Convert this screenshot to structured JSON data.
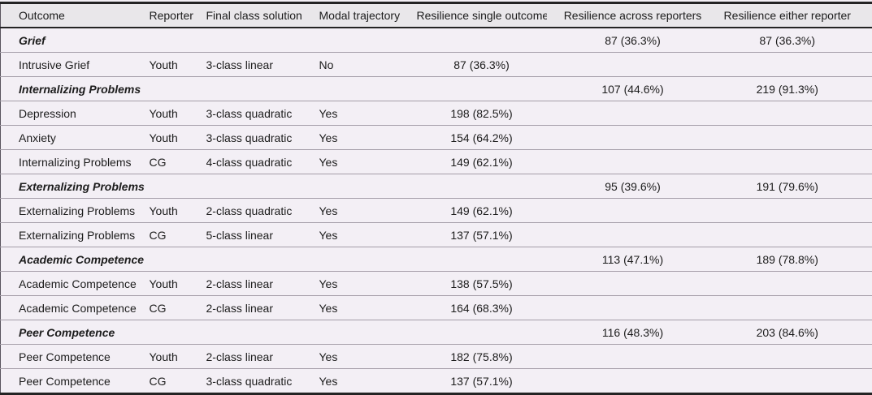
{
  "colors": {
    "page_bg": "#f3eff5",
    "header_bg": "#e9e7ea",
    "rule_dark": "#232323",
    "rule_light": "#a49da8",
    "text": "#1c1c1c"
  },
  "table": {
    "columns": [
      "Outcome",
      "Reporter",
      "Final class solution",
      "Modal trajectory",
      "Resilience single outcome",
      "Resilience across reporters",
      "Resilience either reporter"
    ],
    "rows": [
      {
        "section": true,
        "outcome": "Grief",
        "resilience_across_reporters": "87 (36.3%)",
        "resilience_either_reporter": "87 (36.3%)"
      },
      {
        "section": false,
        "outcome": "Intrusive Grief",
        "reporter": "Youth",
        "final_class_solution": "3-class linear",
        "modal_trajectory": "No",
        "resilience_single_outcome": "87 (36.3%)"
      },
      {
        "section": true,
        "outcome": "Internalizing Problems",
        "resilience_across_reporters": "107 (44.6%)",
        "resilience_either_reporter": "219 (91.3%)"
      },
      {
        "section": false,
        "outcome": "Depression",
        "reporter": "Youth",
        "final_class_solution": "3-class quadratic",
        "modal_trajectory": "Yes",
        "resilience_single_outcome": "198 (82.5%)"
      },
      {
        "section": false,
        "outcome": "Anxiety",
        "reporter": "Youth",
        "final_class_solution": "3-class quadratic",
        "modal_trajectory": "Yes",
        "resilience_single_outcome": "154 (64.2%)"
      },
      {
        "section": false,
        "outcome": "Internalizing Problems",
        "reporter": "CG",
        "final_class_solution": "4-class quadratic",
        "modal_trajectory": "Yes",
        "resilience_single_outcome": "149 (62.1%)"
      },
      {
        "section": true,
        "outcome": "Externalizing Problems",
        "resilience_across_reporters": "95 (39.6%)",
        "resilience_either_reporter": "191 (79.6%)"
      },
      {
        "section": false,
        "outcome": "Externalizing Problems",
        "reporter": "Youth",
        "final_class_solution": "2-class quadratic",
        "modal_trajectory": "Yes",
        "resilience_single_outcome": "149 (62.1%)"
      },
      {
        "section": false,
        "outcome": "Externalizing Problems",
        "reporter": "CG",
        "final_class_solution": "5-class linear",
        "modal_trajectory": "Yes",
        "resilience_single_outcome": "137 (57.1%)"
      },
      {
        "section": true,
        "outcome": "Academic Competence",
        "resilience_across_reporters": "113 (47.1%)",
        "resilience_either_reporter": "189 (78.8%)"
      },
      {
        "section": false,
        "outcome": "Academic Competence",
        "reporter": "Youth",
        "final_class_solution": "2-class linear",
        "modal_trajectory": "Yes",
        "resilience_single_outcome": "138 (57.5%)"
      },
      {
        "section": false,
        "outcome": "Academic Competence",
        "reporter": "CG",
        "final_class_solution": "2-class linear",
        "modal_trajectory": "Yes",
        "resilience_single_outcome": "164 (68.3%)"
      },
      {
        "section": true,
        "outcome": "Peer Competence",
        "resilience_across_reporters": "116 (48.3%)",
        "resilience_either_reporter": "203 (84.6%)"
      },
      {
        "section": false,
        "outcome": "Peer Competence",
        "reporter": "Youth",
        "final_class_solution": "2-class linear",
        "modal_trajectory": "Yes",
        "resilience_single_outcome": "182 (75.8%)"
      },
      {
        "section": false,
        "outcome": "Peer Competence",
        "reporter": "CG",
        "final_class_solution": "3-class quadratic",
        "modal_trajectory": "Yes",
        "resilience_single_outcome": "137 (57.1%)"
      }
    ]
  }
}
